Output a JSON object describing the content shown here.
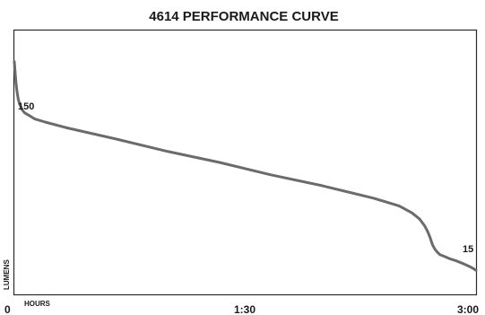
{
  "chart_data": {
    "type": "line",
    "title": "4614 PERFORMANCE CURVE",
    "xlabel": "HOURS",
    "ylabel": "LUMENS",
    "x_tick_labels": [
      "0",
      "1:30",
      "3:00"
    ],
    "xlim_minutes": [
      0,
      180
    ],
    "ylim": [
      0,
      170
    ],
    "grid": false,
    "legend": "none",
    "line_color": "#6b6b6b",
    "annotations": [
      {
        "text": "150",
        "x_minutes": 0,
        "y": 150
      },
      {
        "text": "15",
        "x_minutes": 180,
        "y": 15
      }
    ],
    "series": [
      {
        "x_minutes": [
          0,
          0.3,
          0.6,
          1,
          1.5,
          2,
          3,
          4,
          6,
          8,
          12,
          20,
          40,
          60,
          80,
          100,
          120,
          140,
          150,
          155,
          158,
          160,
          161,
          162,
          163,
          164,
          165,
          166,
          168,
          170,
          172,
          175,
          178,
          180
        ],
        "y": [
          150,
          143,
          137,
          131,
          126,
          123,
          119,
          117,
          115,
          113,
          111,
          107.5,
          100,
          92,
          85,
          77,
          70,
          62,
          57,
          52.5,
          48.5,
          44,
          41,
          37,
          32,
          29,
          27,
          25.5,
          24.2,
          22.8,
          21.8,
          19.8,
          17.5,
          15.5
        ]
      }
    ]
  }
}
